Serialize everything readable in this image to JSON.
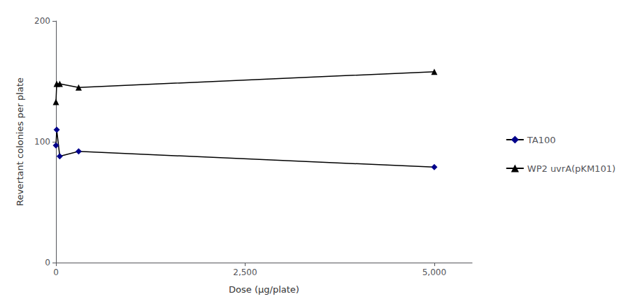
{
  "chart_data": {
    "type": "line",
    "xlabel": "Dose (μg/plate)",
    "ylabel": "Revertant colonies per plate",
    "x": [
      0,
      10,
      50,
      300,
      5000
    ],
    "series": [
      {
        "name": "TA100",
        "color": "#00008B",
        "marker": "diamond",
        "values": [
          97,
          110,
          88,
          92,
          79
        ]
      },
      {
        "name": "WP2 uvrA(pKM101)",
        "color": "#000000",
        "marker": "triangle",
        "values": [
          133,
          148,
          148,
          145,
          158
        ]
      }
    ],
    "color": "#000000",
    "line_style": "solid",
    "xlim": [
      0,
      5500
    ],
    "xticks": [
      0,
      {
        "value": 2500,
        "label": "2,500"
      },
      {
        "value": 5000,
        "label": "5,000"
      }
    ],
    "ylim": [
      0,
      200
    ],
    "yticks": [
      0,
      100,
      200
    ],
    "grid": false,
    "legend": "right"
  }
}
